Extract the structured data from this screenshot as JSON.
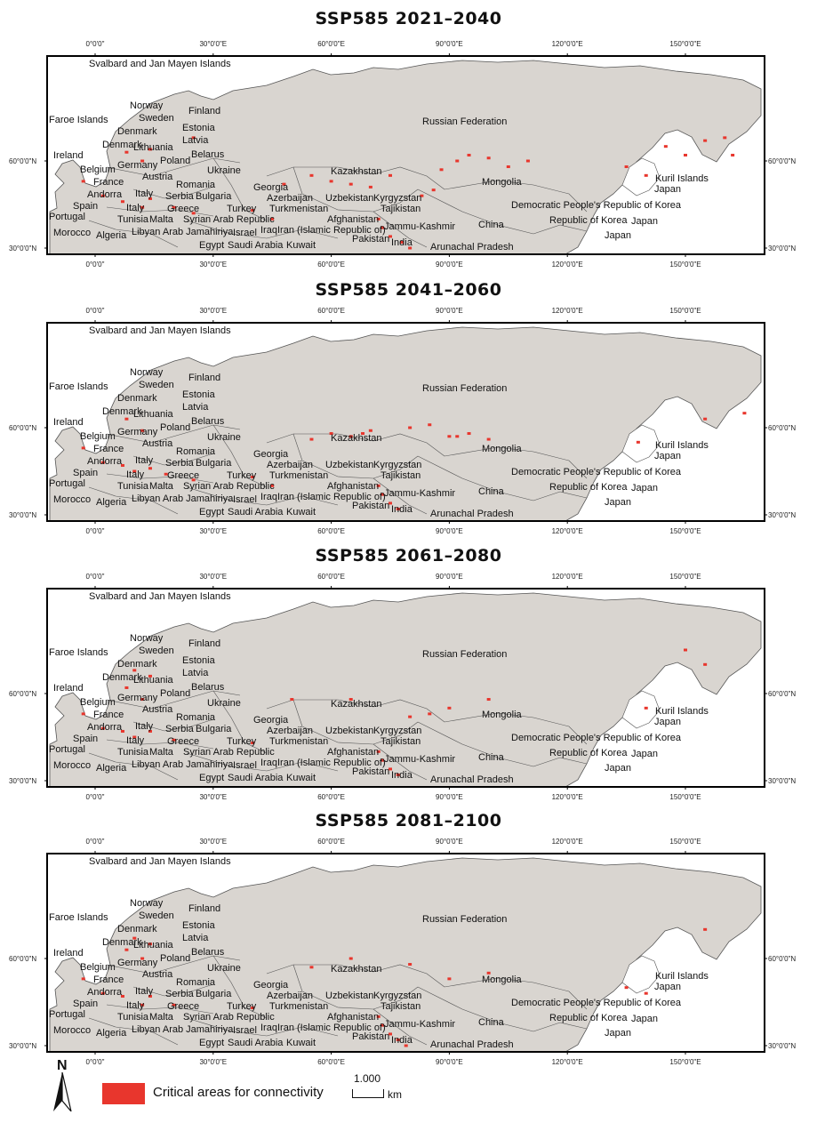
{
  "panels": [
    {
      "title": "SSP585 2021–2040",
      "key": "p1"
    },
    {
      "title": "SSP585 2041–2060",
      "key": "p2"
    },
    {
      "title": "SSP585 2061–2080",
      "key": "p3"
    },
    {
      "title": "SSP585 2081–2100",
      "key": "p4"
    }
  ],
  "lon_ticks": [
    "0°0'0\"",
    "30°0'0\"E",
    "60°0'0\"E",
    "90°0'0\"E",
    "120°0'0\"E",
    "150°0'0\"E"
  ],
  "lat_ticks": [
    "60°0'0\"N",
    "30°0'0\"N"
  ],
  "place_labels": [
    "Svalbard and Jan Mayen Islands",
    "Norway",
    "Sweden",
    "Finland",
    "Faroe Islands",
    "Denmark",
    "Estonia",
    "Latvia",
    "Lithuania",
    "Ireland",
    "Poland",
    "Belarus",
    "Germany",
    "Belgium",
    "Ukraine",
    "France",
    "Austria",
    "Romania",
    "Andorra",
    "Italy",
    "Serbia",
    "Bulgaria",
    "Spain",
    "Greece",
    "Portugal",
    "Tunisia",
    "Malta",
    "Morocco",
    "Algeria",
    "Libyan Arab Jamahiriya",
    "Egypt",
    "Israel",
    "Syrian Arab Republic",
    "Turkey",
    "Iraq",
    "Saudi Arabia",
    "Kuwait",
    "Georgia",
    "Azerbaijan",
    "Turkmenistan",
    "Iran (Islamic Republic of)",
    "Kazakhstan",
    "Uzbekistan",
    "Kyrgyzstan",
    "Tajikistan",
    "Afghanistan",
    "Pakistan",
    "Jammu-Kashmir",
    "India",
    "Arunachal Pradesh",
    "China",
    "Mongolia",
    "Russian Federation",
    "Democratic People's Republic of Korea",
    "Republic of Korea",
    "Japan",
    "Kuril Islands"
  ],
  "legend": {
    "label": "Critical areas for connectivity",
    "color": "#e8362d"
  },
  "scale": {
    "value": "1.000",
    "unit": "km"
  },
  "north": "N",
  "colors": {
    "land": "#d9d5d0",
    "border": "#555555",
    "frame": "#000000",
    "critical": "#e8362d"
  },
  "critical_cluster_lonlat": {
    "p1": [
      [
        8,
        63
      ],
      [
        12,
        60
      ],
      [
        14,
        64
      ],
      [
        25,
        68
      ],
      [
        -3,
        53
      ],
      [
        2,
        48
      ],
      [
        7,
        46
      ],
      [
        12,
        44
      ],
      [
        14,
        47
      ],
      [
        20,
        44
      ],
      [
        25,
        42
      ],
      [
        40,
        43
      ],
      [
        45,
        40
      ],
      [
        72,
        40
      ],
      [
        73,
        37
      ],
      [
        75,
        34
      ],
      [
        78,
        32
      ],
      [
        80,
        30
      ],
      [
        83,
        48
      ],
      [
        86,
        50
      ],
      [
        88,
        57
      ],
      [
        92,
        60
      ],
      [
        95,
        62
      ],
      [
        100,
        61
      ],
      [
        105,
        58
      ],
      [
        110,
        60
      ],
      [
        135,
        58
      ],
      [
        140,
        55
      ],
      [
        145,
        65
      ],
      [
        150,
        62
      ],
      [
        155,
        67
      ],
      [
        160,
        68
      ],
      [
        162,
        62
      ],
      [
        48,
        52
      ],
      [
        55,
        55
      ],
      [
        60,
        53
      ],
      [
        65,
        52
      ],
      [
        70,
        51
      ],
      [
        75,
        55
      ]
    ],
    "p2": [
      [
        8,
        63
      ],
      [
        12,
        59
      ],
      [
        -3,
        53
      ],
      [
        2,
        48
      ],
      [
        7,
        47
      ],
      [
        10,
        45
      ],
      [
        14,
        46
      ],
      [
        18,
        44
      ],
      [
        25,
        42
      ],
      [
        40,
        43
      ],
      [
        45,
        40
      ],
      [
        72,
        40
      ],
      [
        73,
        37
      ],
      [
        75,
        34
      ],
      [
        77,
        32
      ],
      [
        55,
        56
      ],
      [
        60,
        58
      ],
      [
        65,
        57
      ],
      [
        68,
        58
      ],
      [
        70,
        59
      ],
      [
        80,
        60
      ],
      [
        85,
        61
      ],
      [
        90,
        57
      ],
      [
        92,
        57
      ],
      [
        95,
        58
      ],
      [
        100,
        56
      ],
      [
        138,
        55
      ],
      [
        155,
        63
      ],
      [
        165,
        65
      ]
    ],
    "p3": [
      [
        10,
        68
      ],
      [
        14,
        66
      ],
      [
        8,
        62
      ],
      [
        12,
        58
      ],
      [
        -3,
        53
      ],
      [
        2,
        48
      ],
      [
        7,
        47
      ],
      [
        10,
        45
      ],
      [
        14,
        47
      ],
      [
        20,
        44
      ],
      [
        40,
        43
      ],
      [
        72,
        40
      ],
      [
        73,
        37
      ],
      [
        75,
        34
      ],
      [
        77,
        32
      ],
      [
        50,
        58
      ],
      [
        65,
        58
      ],
      [
        80,
        52
      ],
      [
        85,
        53
      ],
      [
        90,
        55
      ],
      [
        100,
        58
      ],
      [
        140,
        55
      ],
      [
        150,
        75
      ],
      [
        155,
        70
      ]
    ],
    "p4": [
      [
        10,
        67
      ],
      [
        14,
        65
      ],
      [
        8,
        63
      ],
      [
        12,
        60
      ],
      [
        -3,
        53
      ],
      [
        2,
        48
      ],
      [
        7,
        47
      ],
      [
        12,
        44
      ],
      [
        14,
        47
      ],
      [
        20,
        44
      ],
      [
        40,
        43
      ],
      [
        72,
        40
      ],
      [
        73,
        37
      ],
      [
        75,
        34
      ],
      [
        77,
        32
      ],
      [
        79,
        30
      ],
      [
        55,
        57
      ],
      [
        65,
        60
      ],
      [
        80,
        58
      ],
      [
        90,
        53
      ],
      [
        100,
        55
      ],
      [
        135,
        50
      ],
      [
        140,
        48
      ],
      [
        155,
        70
      ]
    ]
  }
}
